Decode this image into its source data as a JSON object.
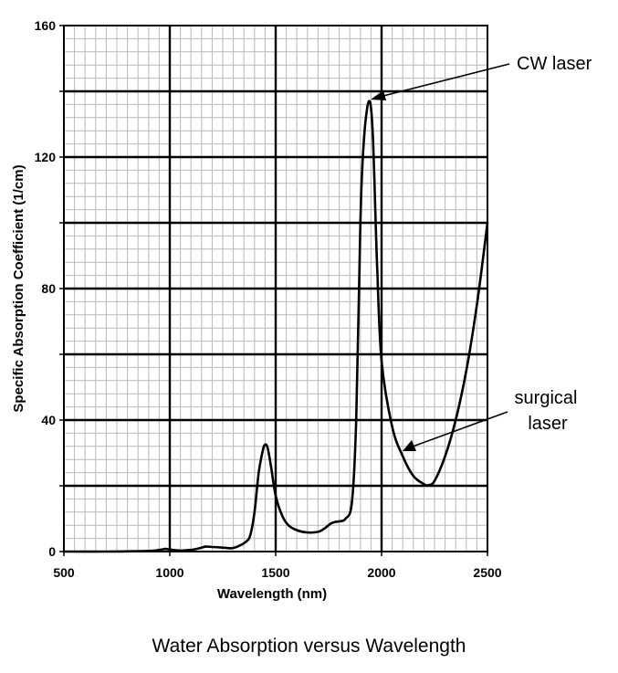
{
  "chart_data": {
    "type": "line",
    "title": "Water Absorption versus Wavelength",
    "xlabel": "Wavelength (nm)",
    "ylabel": "Specific Absorption Coefficient (1/cm)",
    "xlim": [
      500,
      2500
    ],
    "ylim": [
      0,
      160
    ],
    "x_ticks": [
      500,
      1000,
      1500,
      2000,
      2500
    ],
    "x_tick_labels": [
      "500",
      "1000",
      "1500",
      "2000",
      "2500"
    ],
    "y_ticks": [
      0,
      40,
      80,
      120,
      160
    ],
    "y_tick_labels": [
      "0",
      "40",
      "80",
      "120",
      "160"
    ],
    "grid": true,
    "series": [
      {
        "name": "Water absorption",
        "x": [
          500,
          700,
          900,
          950,
          980,
          1000,
          1050,
          1100,
          1140,
          1170,
          1200,
          1250,
          1290,
          1320,
          1360,
          1380,
          1400,
          1420,
          1440,
          1450,
          1460,
          1470,
          1480,
          1500,
          1530,
          1560,
          1600,
          1650,
          1700,
          1730,
          1760,
          1780,
          1800,
          1830,
          1860,
          1880,
          1900,
          1910,
          1920,
          1930,
          1940,
          1950,
          1960,
          1970,
          1980,
          2000,
          2050,
          2100,
          2150,
          2200,
          2220,
          2250,
          2300,
          2350,
          2400,
          2450,
          2500
        ],
        "y": [
          0,
          0,
          0.2,
          0.5,
          0.8,
          0.6,
          0.3,
          0.5,
          1.0,
          1.5,
          1.4,
          1.2,
          1.0,
          1.5,
          3.0,
          5.0,
          12.0,
          24.0,
          31.0,
          32.5,
          32.0,
          29.0,
          25.0,
          17.0,
          11.0,
          8.0,
          6.5,
          5.8,
          6.0,
          7.0,
          8.5,
          9.0,
          9.2,
          10.0,
          15.0,
          40.0,
          100.0,
          118.0,
          128.0,
          134.0,
          137.0,
          135.0,
          125.0,
          105.0,
          85.0,
          58.0,
          38.0,
          29.0,
          23.0,
          20.5,
          20.2,
          21.5,
          29.0,
          40.0,
          55.0,
          75.0,
          100.0
        ]
      }
    ],
    "annotations": [
      {
        "text": "CW laser",
        "point": [
          1950,
          137
        ]
      },
      {
        "lines": [
          "surgical",
          "laser"
        ],
        "point": [
          2100,
          30
        ]
      }
    ]
  }
}
